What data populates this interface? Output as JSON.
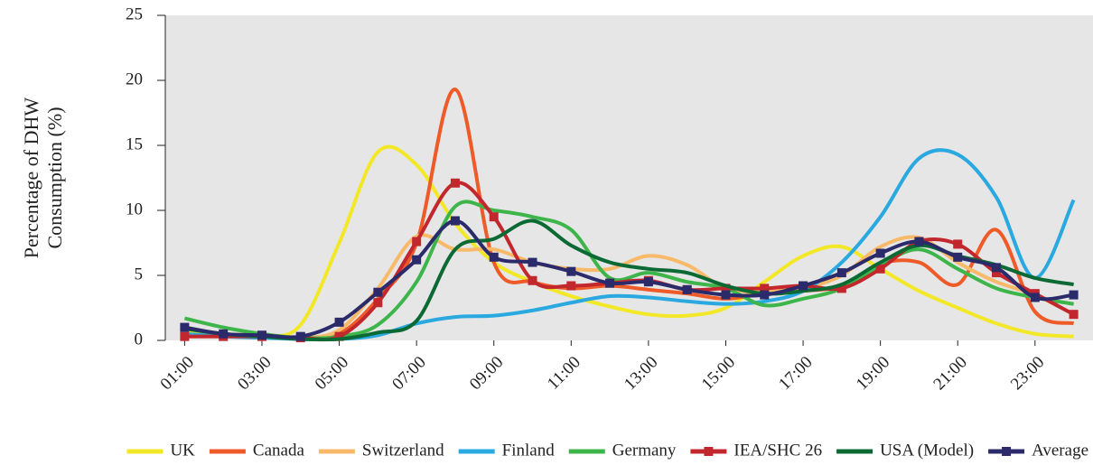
{
  "chart_data": {
    "type": "line",
    "ylabel": [
      "Percentage of DHW",
      "Consumption (%)"
    ],
    "categories": [
      "01:00",
      null,
      "03:00",
      null,
      "05:00",
      null,
      "07:00",
      null,
      "09:00",
      null,
      "11:00",
      null,
      "13:00",
      null,
      "15:00",
      null,
      "17:00",
      null,
      "19:00",
      null,
      "21:00",
      null,
      "23:00",
      null
    ],
    "ylim": [
      0,
      25
    ],
    "yticks": [
      0,
      5,
      10,
      15,
      20,
      25
    ],
    "grid": false,
    "legend": "bottom",
    "series": [
      {
        "name": "UK",
        "color": "#f3e827",
        "values": [
          0.8,
          0.4,
          0.3,
          1.2,
          7.5,
          14.5,
          13.5,
          9.0,
          6.0,
          4.5,
          3.4,
          2.6,
          2.0,
          1.9,
          2.5,
          4.5,
          6.5,
          7.2,
          5.5,
          3.8,
          2.5,
          1.3,
          0.5,
          0.3
        ]
      },
      {
        "name": "Canada",
        "color": "#ee5a28",
        "values": [
          0.3,
          0.3,
          0.3,
          0.2,
          0.5,
          3.2,
          7.5,
          19.3,
          6.0,
          4.5,
          4.0,
          4.2,
          3.9,
          3.6,
          3.2,
          3.6,
          3.8,
          4.2,
          5.9,
          6.0,
          4.3,
          8.5,
          2.2,
          1.3
        ]
      },
      {
        "name": "Switzerland",
        "color": "#f8b968",
        "values": [
          1.0,
          0.5,
          0.4,
          0.2,
          0.8,
          4.0,
          8.0,
          7.0,
          7.0,
          6.0,
          5.5,
          5.5,
          6.5,
          5.8,
          4.0,
          3.8,
          4.0,
          5.0,
          7.2,
          7.9,
          6.0,
          4.5,
          3.5,
          2.0
        ]
      },
      {
        "name": "Finland",
        "color": "#2aa8e0",
        "values": [
          0.5,
          0.3,
          0.2,
          0.1,
          0.1,
          0.4,
          1.3,
          1.8,
          1.9,
          2.3,
          2.9,
          3.4,
          3.3,
          3.0,
          2.8,
          3.0,
          3.8,
          6.0,
          9.5,
          14.0,
          14.3,
          11.0,
          4.8,
          10.8
        ]
      },
      {
        "name": "Germany",
        "color": "#3db54a",
        "values": [
          1.7,
          1.0,
          0.5,
          0.2,
          0.3,
          1.2,
          4.5,
          10.3,
          10.0,
          9.5,
          8.5,
          4.8,
          5.2,
          4.5,
          4.0,
          2.7,
          3.2,
          4.0,
          5.8,
          7.0,
          5.5,
          4.0,
          3.3,
          2.8
        ]
      },
      {
        "name": "IEA/SHC 26",
        "color": "#c1272d",
        "marker": "square",
        "values": [
          0.3,
          0.3,
          0.3,
          0.2,
          0.3,
          2.9,
          7.6,
          12.1,
          9.5,
          4.6,
          4.2,
          4.4,
          4.6,
          3.9,
          4.0,
          4.0,
          4.2,
          4.0,
          5.5,
          7.6,
          7.4,
          5.2,
          3.6,
          2.0
        ]
      },
      {
        "name": "USA (Model)",
        "color": "#0b6a34",
        "values": [
          0.9,
          0.5,
          0.3,
          0.1,
          0.1,
          0.6,
          1.5,
          7.0,
          7.8,
          9.2,
          7.3,
          6.0,
          5.5,
          5.2,
          4.2,
          3.6,
          3.8,
          4.3,
          6.0,
          7.3,
          6.5,
          5.8,
          4.8,
          4.3
        ]
      },
      {
        "name": "Average",
        "color": "#2b2a6b",
        "marker": "square",
        "values": [
          1.0,
          0.5,
          0.4,
          0.3,
          1.4,
          3.7,
          6.2,
          9.2,
          6.4,
          6.0,
          5.3,
          4.4,
          4.5,
          3.9,
          3.5,
          3.5,
          4.2,
          5.2,
          6.7,
          7.6,
          6.4,
          5.6,
          3.3,
          3.5
        ]
      }
    ]
  }
}
